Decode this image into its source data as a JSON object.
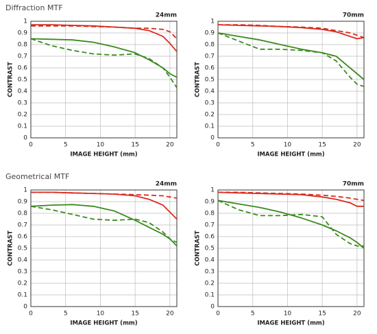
{
  "headings": [
    "Diffraction MTF",
    "Geometrical MTF"
  ],
  "chart_data": [
    {
      "type": "line",
      "title": "24mm",
      "xlabel": "IMAGE HEIGHT (mm)",
      "ylabel": "CONTRAST",
      "x": [
        0,
        3,
        6,
        9,
        12,
        15,
        17,
        19,
        20,
        21
      ],
      "xlim": [
        0,
        21
      ],
      "xticks": [
        0,
        5,
        10,
        15,
        20
      ],
      "ylim": [
        0,
        1
      ],
      "yticks": [
        0,
        0.1,
        0.2,
        0.3,
        0.4,
        0.5,
        0.6,
        0.7,
        0.8,
        0.9,
        1
      ],
      "grid": true,
      "series": [
        {
          "color": "#d92a1c",
          "dashed": false,
          "values": [
            0.97,
            0.97,
            0.965,
            0.96,
            0.95,
            0.94,
            0.92,
            0.87,
            0.81,
            0.74
          ]
        },
        {
          "color": "#d92a1c",
          "dashed": true,
          "values": [
            0.96,
            0.96,
            0.96,
            0.955,
            0.95,
            0.94,
            0.94,
            0.93,
            0.91,
            0.85
          ]
        },
        {
          "color": "#3a8a1c",
          "dashed": false,
          "values": [
            0.85,
            0.845,
            0.84,
            0.82,
            0.78,
            0.73,
            0.67,
            0.6,
            0.55,
            0.52
          ]
        },
        {
          "color": "#3a8a1c",
          "dashed": true,
          "values": [
            0.85,
            0.79,
            0.75,
            0.72,
            0.71,
            0.72,
            0.68,
            0.6,
            0.52,
            0.43
          ]
        }
      ]
    },
    {
      "type": "line",
      "title": "70mm",
      "xlabel": "IMAGE HEIGHT (mm)",
      "ylabel": "CONTRAST",
      "x": [
        0,
        3,
        6,
        9,
        12,
        15,
        17,
        19,
        20,
        21
      ],
      "xlim": [
        0,
        21
      ],
      "xticks": [
        0,
        5,
        10,
        15,
        20
      ],
      "ylim": [
        0,
        1
      ],
      "yticks": [
        0,
        0.1,
        0.2,
        0.3,
        0.4,
        0.5,
        0.6,
        0.7,
        0.8,
        0.9,
        1
      ],
      "grid": true,
      "series": [
        {
          "color": "#d92a1c",
          "dashed": false,
          "values": [
            0.97,
            0.965,
            0.96,
            0.955,
            0.945,
            0.93,
            0.91,
            0.87,
            0.85,
            0.86
          ]
        },
        {
          "color": "#d92a1c",
          "dashed": true,
          "values": [
            0.97,
            0.97,
            0.965,
            0.955,
            0.95,
            0.94,
            0.92,
            0.9,
            0.88,
            0.86
          ]
        },
        {
          "color": "#3a8a1c",
          "dashed": false,
          "values": [
            0.9,
            0.87,
            0.84,
            0.8,
            0.76,
            0.73,
            0.7,
            0.6,
            0.55,
            0.5
          ]
        },
        {
          "color": "#3a8a1c",
          "dashed": true,
          "values": [
            0.9,
            0.83,
            0.76,
            0.76,
            0.75,
            0.73,
            0.66,
            0.52,
            0.46,
            0.44
          ]
        }
      ]
    },
    {
      "type": "line",
      "title": "24mm",
      "xlabel": "IMAGE HEIGHT (mm)",
      "ylabel": "CONTRAST",
      "x": [
        0,
        3,
        6,
        9,
        12,
        15,
        17,
        19,
        20,
        21
      ],
      "xlim": [
        0,
        21
      ],
      "xticks": [
        0,
        5,
        10,
        15,
        20
      ],
      "ylim": [
        0,
        1
      ],
      "yticks": [
        0,
        0.1,
        0.2,
        0.3,
        0.4,
        0.5,
        0.6,
        0.7,
        0.8,
        0.9,
        1
      ],
      "grid": true,
      "series": [
        {
          "color": "#d92a1c",
          "dashed": false,
          "values": [
            0.98,
            0.98,
            0.975,
            0.97,
            0.965,
            0.95,
            0.92,
            0.87,
            0.81,
            0.75
          ]
        },
        {
          "color": "#d92a1c",
          "dashed": true,
          "values": [
            0.98,
            0.98,
            0.975,
            0.97,
            0.965,
            0.96,
            0.955,
            0.95,
            0.94,
            0.93
          ]
        },
        {
          "color": "#3a8a1c",
          "dashed": false,
          "values": [
            0.86,
            0.87,
            0.875,
            0.86,
            0.82,
            0.74,
            0.68,
            0.62,
            0.58,
            0.52
          ]
        },
        {
          "color": "#3a8a1c",
          "dashed": true,
          "values": [
            0.86,
            0.83,
            0.79,
            0.75,
            0.74,
            0.75,
            0.72,
            0.64,
            0.58,
            0.55
          ]
        }
      ]
    },
    {
      "type": "line",
      "title": "70mm",
      "xlabel": "IMAGE HEIGHT (mm)",
      "ylabel": "CONTRAST",
      "x": [
        0,
        3,
        6,
        9,
        12,
        15,
        17,
        19,
        20,
        21
      ],
      "xlim": [
        0,
        21
      ],
      "xticks": [
        0,
        5,
        10,
        15,
        20
      ],
      "ylim": [
        0,
        1
      ],
      "yticks": [
        0,
        0.1,
        0.2,
        0.3,
        0.4,
        0.5,
        0.6,
        0.7,
        0.8,
        0.9,
        1
      ],
      "grid": true,
      "series": [
        {
          "color": "#d92a1c",
          "dashed": false,
          "values": [
            0.98,
            0.975,
            0.97,
            0.965,
            0.96,
            0.94,
            0.92,
            0.89,
            0.86,
            0.86
          ]
        },
        {
          "color": "#d92a1c",
          "dashed": true,
          "values": [
            0.98,
            0.98,
            0.975,
            0.97,
            0.965,
            0.955,
            0.945,
            0.93,
            0.92,
            0.91
          ]
        },
        {
          "color": "#3a8a1c",
          "dashed": false,
          "values": [
            0.91,
            0.88,
            0.85,
            0.81,
            0.76,
            0.7,
            0.65,
            0.59,
            0.55,
            0.5
          ]
        },
        {
          "color": "#3a8a1c",
          "dashed": true,
          "values": [
            0.91,
            0.83,
            0.78,
            0.78,
            0.79,
            0.77,
            0.62,
            0.54,
            0.52,
            0.52
          ]
        }
      ]
    }
  ]
}
